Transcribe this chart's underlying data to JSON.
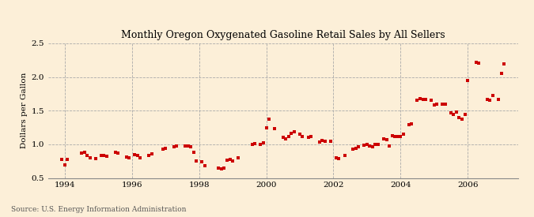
{
  "title": "Monthly Oregon Oxygenated Gasoline Retail Sales by All Sellers",
  "ylabel": "Dollars per Gallon",
  "source": "Source: U.S. Energy Information Administration",
  "background_color": "#fcefd8",
  "plot_bg_color": "#fcefd8",
  "marker_color": "#cc0000",
  "marker_size": 3,
  "ylim": [
    0.5,
    2.5
  ],
  "yticks": [
    0.5,
    1.0,
    1.5,
    2.0,
    2.5
  ],
  "xlim_start": 1993.5,
  "xlim_end": 2007.5,
  "xticks": [
    1994,
    1996,
    1998,
    2000,
    2002,
    2004,
    2006
  ],
  "data": [
    [
      1993.917,
      0.78
    ],
    [
      1994.0,
      0.69
    ],
    [
      1994.083,
      0.78
    ],
    [
      1994.5,
      0.87
    ],
    [
      1994.583,
      0.88
    ],
    [
      1994.667,
      0.84
    ],
    [
      1994.75,
      0.8
    ],
    [
      1994.917,
      0.79
    ],
    [
      1995.083,
      0.83
    ],
    [
      1995.167,
      0.84
    ],
    [
      1995.25,
      0.82
    ],
    [
      1995.5,
      0.88
    ],
    [
      1995.583,
      0.87
    ],
    [
      1995.833,
      0.81
    ],
    [
      1995.917,
      0.8
    ],
    [
      1996.083,
      0.85
    ],
    [
      1996.167,
      0.83
    ],
    [
      1996.25,
      0.8
    ],
    [
      1996.5,
      0.84
    ],
    [
      1996.583,
      0.86
    ],
    [
      1996.917,
      0.93
    ],
    [
      1997.0,
      0.94
    ],
    [
      1997.25,
      0.96
    ],
    [
      1997.333,
      0.97
    ],
    [
      1997.583,
      0.97
    ],
    [
      1997.667,
      0.98
    ],
    [
      1997.75,
      0.96
    ],
    [
      1997.833,
      0.88
    ],
    [
      1997.917,
      0.75
    ],
    [
      1998.083,
      0.74
    ],
    [
      1998.167,
      0.68
    ],
    [
      1998.583,
      0.65
    ],
    [
      1998.667,
      0.63
    ],
    [
      1998.75,
      0.65
    ],
    [
      1998.833,
      0.76
    ],
    [
      1998.917,
      0.77
    ],
    [
      1999.0,
      0.75
    ],
    [
      1999.167,
      0.8
    ],
    [
      1999.583,
      1.0
    ],
    [
      1999.667,
      1.01
    ],
    [
      1999.833,
      1.0
    ],
    [
      1999.917,
      1.02
    ],
    [
      2000.0,
      1.25
    ],
    [
      2000.083,
      1.37
    ],
    [
      2000.25,
      1.23
    ],
    [
      2000.5,
      1.1
    ],
    [
      2000.583,
      1.08
    ],
    [
      2000.667,
      1.12
    ],
    [
      2000.75,
      1.16
    ],
    [
      2000.833,
      1.19
    ],
    [
      2001.0,
      1.15
    ],
    [
      2001.083,
      1.12
    ],
    [
      2001.25,
      1.1
    ],
    [
      2001.333,
      1.11
    ],
    [
      2001.583,
      1.03
    ],
    [
      2001.667,
      1.06
    ],
    [
      2001.75,
      1.04
    ],
    [
      2001.917,
      1.04
    ],
    [
      2002.083,
      0.8
    ],
    [
      2002.167,
      0.79
    ],
    [
      2002.333,
      0.83
    ],
    [
      2002.583,
      0.93
    ],
    [
      2002.667,
      0.94
    ],
    [
      2002.75,
      0.96
    ],
    [
      2002.917,
      0.99
    ],
    [
      2003.0,
      1.0
    ],
    [
      2003.083,
      0.97
    ],
    [
      2003.167,
      0.96
    ],
    [
      2003.25,
      1.0
    ],
    [
      2003.333,
      1.0
    ],
    [
      2003.5,
      1.08
    ],
    [
      2003.583,
      1.07
    ],
    [
      2003.667,
      0.98
    ],
    [
      2003.75,
      1.13
    ],
    [
      2003.833,
      1.12
    ],
    [
      2003.917,
      1.11
    ],
    [
      2004.0,
      1.12
    ],
    [
      2004.083,
      1.15
    ],
    [
      2004.25,
      1.29
    ],
    [
      2004.333,
      1.3
    ],
    [
      2004.5,
      1.66
    ],
    [
      2004.583,
      1.68
    ],
    [
      2004.667,
      1.67
    ],
    [
      2004.75,
      1.67
    ],
    [
      2004.917,
      1.65
    ],
    [
      2005.0,
      1.58
    ],
    [
      2005.083,
      1.6
    ],
    [
      2005.25,
      1.6
    ],
    [
      2005.333,
      1.6
    ],
    [
      2005.5,
      1.47
    ],
    [
      2005.583,
      1.45
    ],
    [
      2005.667,
      1.48
    ],
    [
      2005.75,
      1.4
    ],
    [
      2005.833,
      1.37
    ],
    [
      2005.917,
      1.45
    ],
    [
      2006.0,
      1.95
    ],
    [
      2006.25,
      2.22
    ],
    [
      2006.333,
      2.21
    ],
    [
      2006.583,
      1.67
    ],
    [
      2006.667,
      1.65
    ],
    [
      2006.75,
      1.73
    ],
    [
      2006.917,
      1.67
    ],
    [
      2007.0,
      2.06
    ],
    [
      2007.083,
      2.19
    ]
  ]
}
